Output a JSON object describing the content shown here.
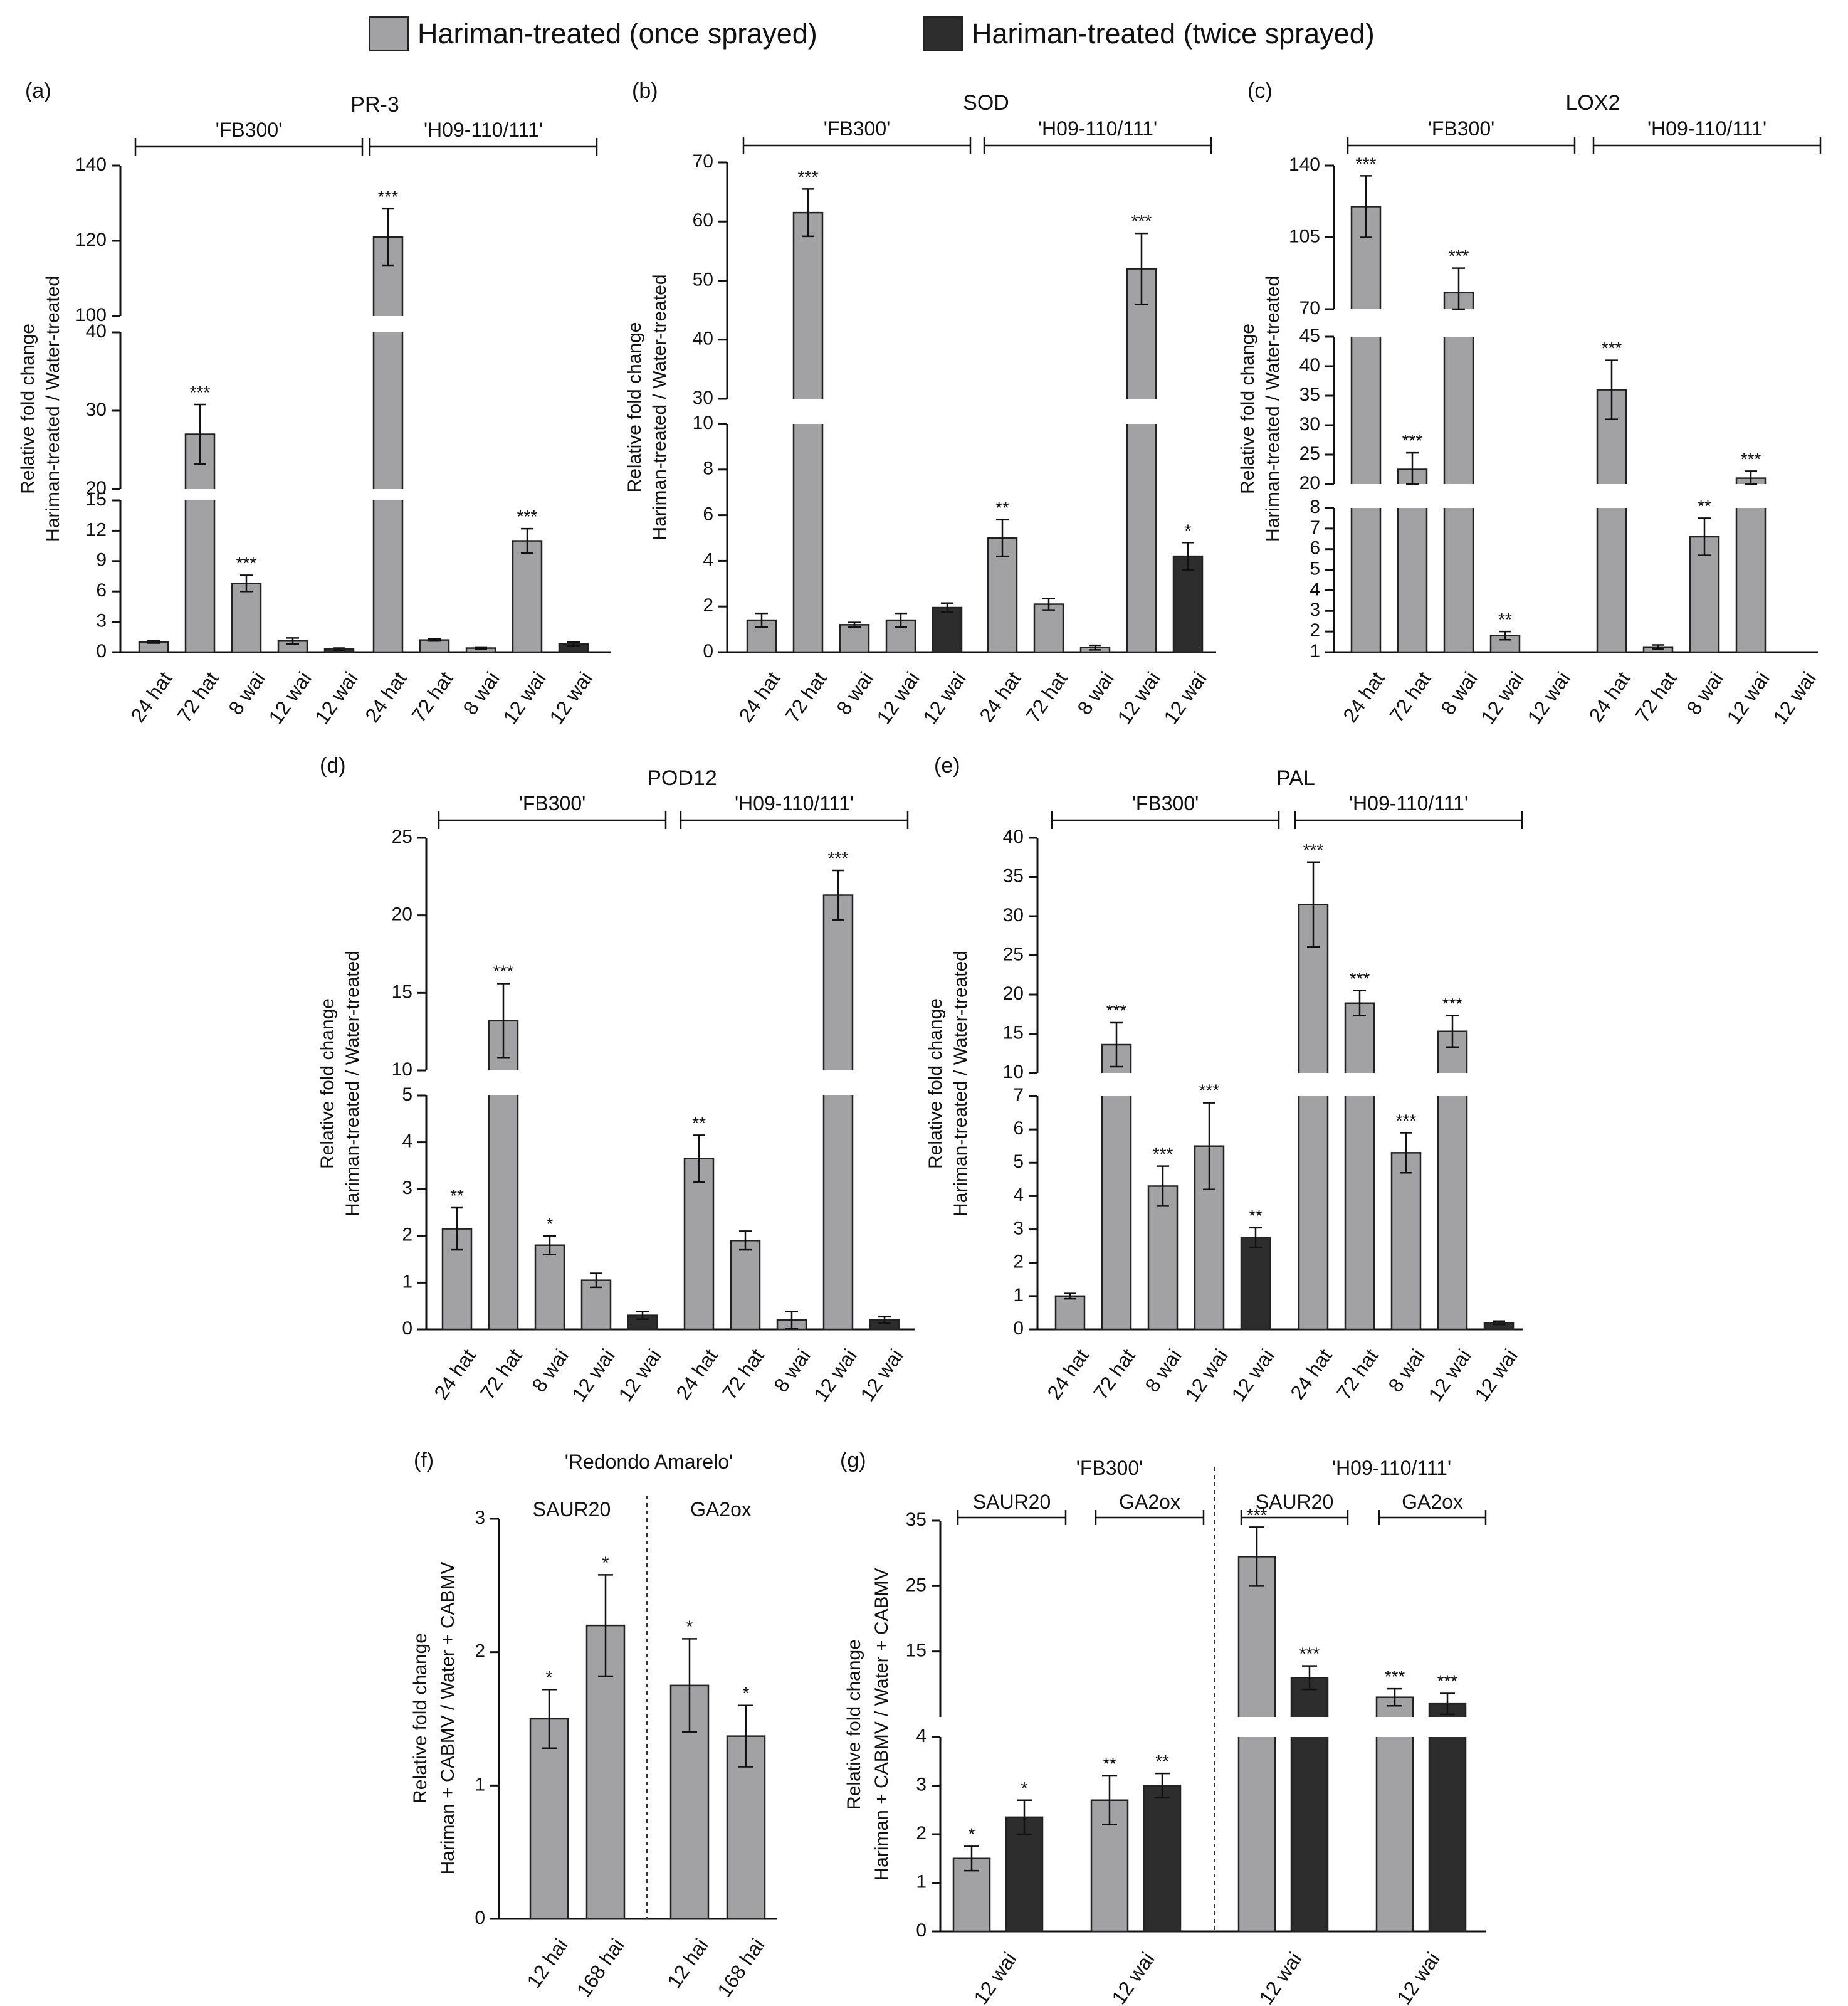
{
  "legend": {
    "once": {
      "label": "Hariman-treated (once sprayed)",
      "color": "#a2a2a5"
    },
    "twice": {
      "label": "Hariman-treated (twice sprayed)",
      "color": "#2d2d2d"
    }
  },
  "chart_data": [
    {
      "id": "a",
      "type": "bar",
      "panel_label": "(a)",
      "title": "PR-3",
      "ylabel_lines": [
        "Relative fold change",
        "Hariman-treated / Water-treated"
      ],
      "broken_axis_segments": [
        {
          "range": [
            0,
            15
          ],
          "ticks": [
            0,
            3,
            6,
            9,
            12,
            15
          ]
        },
        {
          "range": [
            20,
            40
          ],
          "ticks": [
            20,
            30,
            40
          ]
        },
        {
          "range": [
            100,
            140
          ],
          "ticks": [
            100,
            120,
            140
          ]
        }
      ],
      "groups": [
        {
          "label": "'FB300'",
          "categories": [
            "24 hat",
            "72 hat",
            "8 wai",
            "12 wai",
            "12 wai"
          ],
          "values": [
            1.0,
            27.0,
            6.8,
            1.1,
            0.3
          ],
          "errors": [
            0.1,
            3.8,
            0.8,
            0.3,
            0.1
          ],
          "series": [
            "once",
            "once",
            "once",
            "once",
            "twice"
          ],
          "significance": [
            "",
            "***",
            "***",
            "",
            ""
          ]
        },
        {
          "label": "'H09-110/111'",
          "categories": [
            "24 hat",
            "72 hat",
            "8 wai",
            "12 wai",
            "12 wai"
          ],
          "values": [
            121,
            1.2,
            0.4,
            11.0,
            0.8
          ],
          "errors": [
            7.5,
            0.1,
            0.1,
            1.2,
            0.2
          ],
          "series": [
            "once",
            "once",
            "once",
            "once",
            "twice"
          ],
          "significance": [
            "***",
            "",
            "",
            "***",
            ""
          ]
        }
      ]
    },
    {
      "id": "b",
      "type": "bar",
      "panel_label": "(b)",
      "title": "SOD",
      "ylabel_lines": [
        "Relative fold change",
        "Hariman-treated / Water-treated"
      ],
      "broken_axis_segments": [
        {
          "range": [
            0,
            10
          ],
          "ticks": [
            0,
            2,
            4,
            6,
            8,
            10
          ]
        },
        {
          "range": [
            30,
            70
          ],
          "ticks": [
            30,
            40,
            50,
            60,
            70
          ]
        }
      ],
      "groups": [
        {
          "label": "'FB300'",
          "categories": [
            "24 hat",
            "72 hat",
            "8 wai",
            "12 wai",
            "12 wai"
          ],
          "values": [
            1.4,
            61.5,
            1.2,
            1.4,
            1.95
          ],
          "errors": [
            0.3,
            4.0,
            0.1,
            0.3,
            0.2
          ],
          "series": [
            "once",
            "once",
            "once",
            "once",
            "twice"
          ],
          "significance": [
            "",
            "***",
            "",
            "",
            ""
          ]
        },
        {
          "label": "'H09-110/111'",
          "categories": [
            "24 hat",
            "72 hat",
            "8 wai",
            "12 wai",
            "12 wai"
          ],
          "values": [
            5.0,
            2.1,
            0.2,
            52.0,
            4.2
          ],
          "errors": [
            0.8,
            0.25,
            0.1,
            6.0,
            0.6
          ],
          "series": [
            "once",
            "once",
            "once",
            "once",
            "twice"
          ],
          "significance": [
            "**",
            "",
            "",
            "***",
            "*"
          ]
        }
      ]
    },
    {
      "id": "c",
      "type": "bar",
      "panel_label": "(c)",
      "title": "LOX2",
      "ylabel_lines": [
        "Relative fold change",
        "Hariman-treated / Water-treated"
      ],
      "broken_axis_segments": [
        {
          "range": [
            1,
            8
          ],
          "ticks": [
            1,
            2,
            3,
            4,
            5,
            6,
            7,
            8
          ]
        },
        {
          "range": [
            20,
            45
          ],
          "ticks": [
            20,
            25,
            30,
            35,
            40,
            45
          ]
        },
        {
          "range": [
            70,
            140
          ],
          "ticks": [
            70,
            105,
            140
          ]
        }
      ],
      "groups": [
        {
          "label": "'FB300'",
          "categories": [
            "24 hat",
            "72 hat",
            "8 wai",
            "12 wai",
            "12 wai"
          ],
          "values": [
            120,
            22.5,
            78,
            1.8,
            0
          ],
          "errors": [
            15,
            2.8,
            12,
            0.2,
            0
          ],
          "series": [
            "once",
            "once",
            "once",
            "once",
            "twice"
          ],
          "significance": [
            "***",
            "***",
            "***",
            "**",
            ""
          ]
        },
        {
          "label": "'H09-110/111'",
          "categories": [
            "24 hat",
            "72 hat",
            "8 wai",
            "12 wai",
            "12 wai"
          ],
          "values": [
            36,
            1.25,
            6.6,
            21,
            0
          ],
          "errors": [
            5.0,
            0.1,
            0.9,
            1.2,
            0
          ],
          "series": [
            "once",
            "once",
            "once",
            "once",
            "twice"
          ],
          "significance": [
            "***",
            "",
            "**",
            "***",
            ""
          ]
        }
      ]
    },
    {
      "id": "d",
      "type": "bar",
      "panel_label": "(d)",
      "title": "POD12",
      "ylabel_lines": [
        "Relative fold change",
        "Hariman-treated / Water-treated"
      ],
      "broken_axis_segments": [
        {
          "range": [
            0,
            5
          ],
          "ticks": [
            0,
            1,
            2,
            3,
            4,
            5
          ]
        },
        {
          "range": [
            10,
            25
          ],
          "ticks": [
            10,
            15,
            20,
            25
          ]
        }
      ],
      "groups": [
        {
          "label": "'FB300'",
          "categories": [
            "24 hat",
            "72 hat",
            "8 wai",
            "12 wai",
            "12 wai"
          ],
          "values": [
            2.15,
            13.2,
            1.8,
            1.05,
            0.3
          ],
          "errors": [
            0.45,
            2.4,
            0.2,
            0.15,
            0.08
          ],
          "series": [
            "once",
            "once",
            "once",
            "once",
            "twice"
          ],
          "significance": [
            "**",
            "***",
            "*",
            "",
            ""
          ]
        },
        {
          "label": "'H09-110/111'",
          "categories": [
            "24 hat",
            "72 hat",
            "8 wai",
            "12 wai",
            "12 wai"
          ],
          "values": [
            3.65,
            1.9,
            0.2,
            21.3,
            0.2
          ],
          "errors": [
            0.5,
            0.2,
            0.18,
            1.6,
            0.07
          ],
          "series": [
            "once",
            "once",
            "once",
            "once",
            "twice"
          ],
          "significance": [
            "**",
            "",
            "",
            "***",
            ""
          ]
        }
      ]
    },
    {
      "id": "e",
      "type": "bar",
      "panel_label": "(e)",
      "title": "PAL",
      "ylabel_lines": [
        "Relative fold change",
        "Hariman-treated / Water-treated"
      ],
      "broken_axis_segments": [
        {
          "range": [
            0,
            7
          ],
          "ticks": [
            0,
            1,
            2,
            3,
            4,
            5,
            6,
            7
          ]
        },
        {
          "range": [
            10,
            40
          ],
          "ticks": [
            10,
            15,
            20,
            25,
            30,
            35,
            40
          ]
        }
      ],
      "groups": [
        {
          "label": "'FB300'",
          "categories": [
            "24 hat",
            "72 hat",
            "8 wai",
            "12 wai",
            "12 wai"
          ],
          "values": [
            1.0,
            13.6,
            4.3,
            5.5,
            2.75
          ],
          "errors": [
            0.08,
            2.8,
            0.6,
            1.3,
            0.3
          ],
          "series": [
            "once",
            "once",
            "once",
            "once",
            "twice"
          ],
          "significance": [
            "",
            "***",
            "***",
            "***",
            "**"
          ]
        },
        {
          "label": "'H09-110/111'",
          "categories": [
            "24 hat",
            "72 hat",
            "8 wai",
            "12 wai",
            "12 wai"
          ],
          "values": [
            31.5,
            18.9,
            5.3,
            15.3,
            0.2
          ],
          "errors": [
            5.4,
            1.6,
            0.6,
            2.0,
            0.05
          ],
          "series": [
            "once",
            "once",
            "once",
            "once",
            "twice"
          ],
          "significance": [
            "***",
            "***",
            "***",
            "***",
            ""
          ]
        }
      ]
    },
    {
      "id": "f",
      "type": "bar",
      "panel_label": "(f)",
      "title": "'Redondo Amarelo'",
      "ylabel_lines": [
        "Relative fold change",
        "Hariman + CABMV / Water + CABMV"
      ],
      "broken_axis_segments": [
        {
          "range": [
            0,
            3
          ],
          "ticks": [
            0,
            1,
            2,
            3
          ]
        }
      ],
      "groups": [
        {
          "label": "SAUR20",
          "categories": [
            "12 hai",
            "168 hai"
          ],
          "values": [
            1.5,
            2.2
          ],
          "errors": [
            0.22,
            0.38
          ],
          "series": [
            "once",
            "once"
          ],
          "significance": [
            "*",
            "*"
          ]
        },
        {
          "label": "GA2ox",
          "categories": [
            "12 hai",
            "168 hai"
          ],
          "values": [
            1.75,
            1.37
          ],
          "errors": [
            0.35,
            0.23
          ],
          "series": [
            "once",
            "once"
          ],
          "significance": [
            "*",
            "*"
          ]
        }
      ]
    },
    {
      "id": "g",
      "type": "bar",
      "panel_label": "(g)",
      "title": "",
      "top_labels": [
        "'FB300'",
        "'H09-110/111'"
      ],
      "ylabel_lines": [
        "Relative fold change",
        "Hariman + CABMV / Water + CABMV"
      ],
      "broken_axis_segments": [
        {
          "range": [
            0,
            4
          ],
          "ticks": [
            0,
            1,
            2,
            3,
            4
          ]
        },
        {
          "range": [
            5,
            35
          ],
          "ticks": [
            15,
            25,
            35
          ]
        }
      ],
      "groups": [
        {
          "label": "SAUR20",
          "categories": [
            "12 wai"
          ],
          "values": [
            1.5,
            2.35
          ],
          "errors": [
            0.25,
            0.35
          ],
          "series": [
            "once",
            "twice"
          ],
          "significance": [
            "*",
            "*"
          ]
        },
        {
          "label": "GA2ox",
          "categories": [
            "12 wai"
          ],
          "values": [
            2.7,
            3.0
          ],
          "errors": [
            0.5,
            0.25
          ],
          "series": [
            "once",
            "twice"
          ],
          "significance": [
            "**",
            "**"
          ]
        },
        {
          "label": "SAUR20",
          "categories": [
            "12 wai"
          ],
          "values": [
            29.5,
            11.0
          ],
          "errors": [
            4.5,
            1.8
          ],
          "series": [
            "once",
            "twice"
          ],
          "significance": [
            "***",
            "***"
          ]
        },
        {
          "label": "GA2ox",
          "categories": [
            "12 wai"
          ],
          "values": [
            8.0,
            7.0
          ],
          "errors": [
            1.3,
            1.6
          ],
          "series": [
            "once",
            "twice"
          ],
          "significance": [
            "***",
            "***"
          ]
        }
      ]
    }
  ]
}
